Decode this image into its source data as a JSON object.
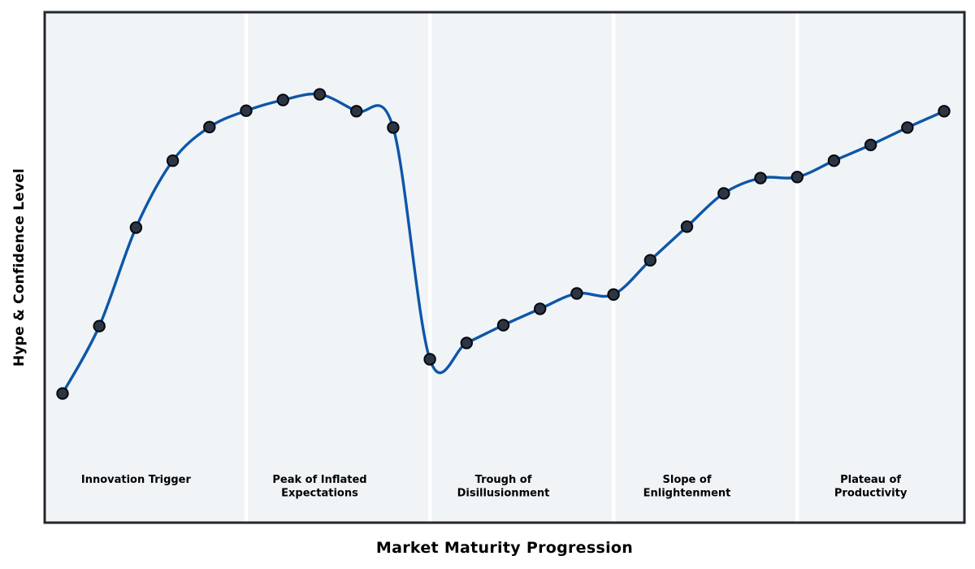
{
  "xlabel": "Market Maturity Progression",
  "ylabel": "Hype & Confidence Level",
  "phases": [
    {
      "name": "Innovation Trigger",
      "lines": [
        "Innovation Trigger"
      ]
    },
    {
      "name": "Peak of Inflated Expectations",
      "lines": [
        "Peak of Inflated",
        "Expectations"
      ]
    },
    {
      "name": "Trough of Disillusionment",
      "lines": [
        "Trough of",
        "Disillusionment"
      ]
    },
    {
      "name": "Slope of Enlightenment",
      "lines": [
        "Slope of",
        "Enlightenment"
      ]
    },
    {
      "name": "Plateau of Productivity",
      "lines": [
        "Plateau of",
        "Productivity"
      ]
    }
  ],
  "colors": {
    "line": "#0e56a8",
    "marker": "#2c3543",
    "marker_edge": "#05080c",
    "band": "#f0f4f7",
    "separator": "#ffffff",
    "frame": "#24282d",
    "text": "#000000",
    "background": "#ffffff"
  },
  "chart_data": {
    "type": "line",
    "title": "",
    "xlabel": "Market Maturity Progression",
    "ylabel": "Hype & Confidence Level",
    "x": [
      1,
      2,
      3,
      4,
      5,
      6,
      7,
      8,
      9,
      10,
      11,
      12,
      13,
      14,
      15,
      16,
      17,
      18,
      19,
      20,
      21,
      22,
      23,
      24,
      25
    ],
    "series": [
      {
        "name": "Hype & Confidence Level",
        "values": [
          25.3,
          38.5,
          57.8,
          70.9,
          77.5,
          80.7,
          82.8,
          83.9,
          80.6,
          77.4,
          32.0,
          35.2,
          38.7,
          41.9,
          44.9,
          44.7,
          51.4,
          58.0,
          64.5,
          67.5,
          67.7,
          70.9,
          74.0,
          77.4,
          80.6
        ]
      }
    ],
    "ylim": [
      0,
      100
    ],
    "grid": false,
    "legend": "none",
    "axis_ticks": "none",
    "smoothing": "cubic-spline",
    "marker_style": "filled-circle",
    "phase_boundaries_at_x": [
      6,
      11,
      16,
      21
    ],
    "phase_label_at_x": [
      3,
      8,
      13,
      18,
      23
    ]
  }
}
